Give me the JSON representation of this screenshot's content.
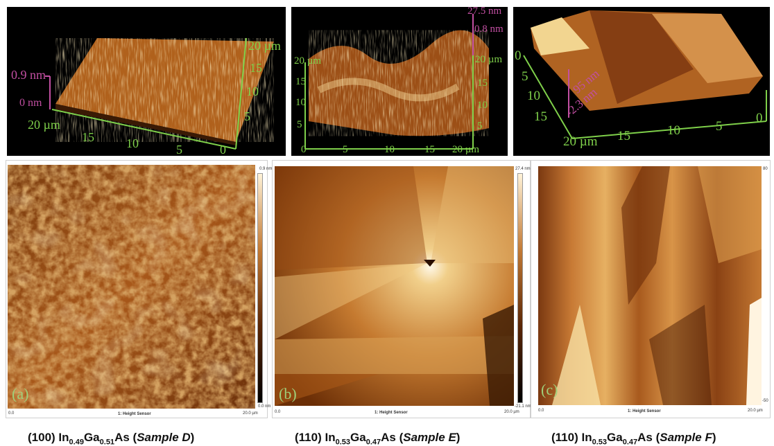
{
  "panels": [
    {
      "letter": "(a)",
      "top3d": {
        "z_max": "0.9 nm",
        "z_min": "0 nm",
        "x_axis": [
          "20 µm",
          "15",
          "10",
          "5",
          "0"
        ],
        "y_axis": [
          "20 µm",
          "15",
          "10",
          "5"
        ]
      },
      "map": {
        "scale_top": "0.9 nm",
        "scale_bottom": "0.0 nm",
        "sensor": "1: Height Sensor",
        "x_start": "0.0",
        "x_end": "20.0 µm"
      },
      "caption": {
        "orient": "(100) In",
        "in_sub": "0.49",
        "ga": "Ga",
        "ga_sub": "0.51",
        "as": "As (",
        "sample": "Sample D",
        "close": ")"
      }
    },
    {
      "letter": "(b)",
      "top3d": {
        "z_max": "27.5 nm",
        "z_min": "0.8 nm",
        "x_axis": [
          "0",
          "5",
          "10",
          "15",
          "20 µm"
        ],
        "y_axis": [
          "20 µm",
          "15",
          "10",
          "5"
        ],
        "y_axis_left": [
          "20 µm",
          "15",
          "10",
          "5"
        ]
      },
      "map": {
        "scale_top": "27.4 nm",
        "scale_bottom": "-21.1 nm",
        "sensor": "1: Height Sensor",
        "x_start": "0.0",
        "x_end": "20.0 µm"
      },
      "caption": {
        "orient": "(110) In",
        "in_sub": "0.53",
        "ga": "Ga",
        "ga_sub": "0.47",
        "as": "As (",
        "sample": "Sample E",
        "close": ")"
      }
    },
    {
      "letter": "(c)",
      "top3d": {
        "z_max": "95 nm",
        "z_min": "-2.3 nm",
        "x_axis": [
          "20 µm",
          "15",
          "10",
          "5",
          "0"
        ],
        "y_axis": [
          "0",
          "5",
          "10",
          "15"
        ]
      },
      "map": {
        "scale_top": "80",
        "scale_bottom": "-50",
        "sensor": "1: Height Sensor",
        "x_start": "0.0",
        "x_end": "20.0 µm"
      },
      "caption": {
        "orient": "(110) In",
        "in_sub": "0.53",
        "ga": "Ga",
        "ga_sub": "0.47",
        "as": "As (",
        "sample": "Sample F",
        "close": ")"
      }
    }
  ],
  "colors": {
    "afm_dark": "#2a0f00",
    "afm_mid": "#a8581a",
    "afm_light": "#f3d99a",
    "axis_green": "#7fd04a",
    "label_pink": "#c24fa2",
    "letter_green": "#9fd07a"
  }
}
